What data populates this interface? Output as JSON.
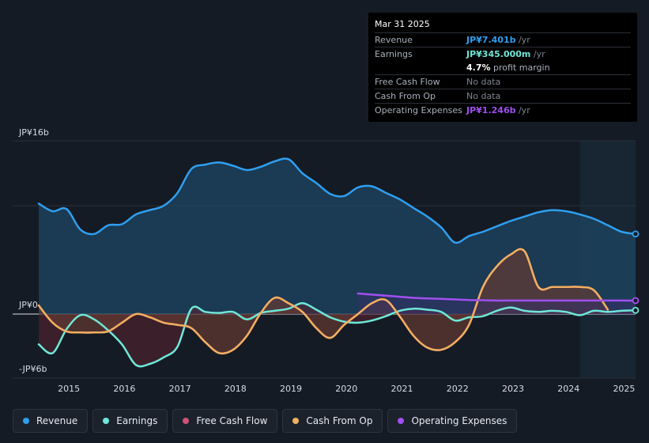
{
  "tooltip": {
    "date": "Mar 31 2025",
    "rows": [
      {
        "label": "Revenue",
        "value": "JP¥7.401b",
        "unit": " /yr",
        "color": "#2f9ff0"
      },
      {
        "label": "Earnings",
        "value": "JP¥345.000m",
        "unit": " /yr",
        "color": "#6ee8d8"
      },
      {
        "label": "Free Cash Flow",
        "value": "No data",
        "unit": "",
        "color": "#7d8590"
      },
      {
        "label": "Cash From Op",
        "value": "No data",
        "unit": "",
        "color": "#7d8590"
      },
      {
        "label": "Operating Expenses",
        "value": "JP¥1.246b",
        "unit": " /yr",
        "color": "#a050f0"
      }
    ],
    "margin_value": "4.7%",
    "margin_label": " profit margin"
  },
  "legend": [
    {
      "label": "Revenue",
      "color": "#2f9ff0"
    },
    {
      "label": "Earnings",
      "color": "#6ee8d8"
    },
    {
      "label": "Free Cash Flow",
      "color": "#d0507a"
    },
    {
      "label": "Cash From Op",
      "color": "#f0b060"
    },
    {
      "label": "Operating Expenses",
      "color": "#a050f0"
    }
  ],
  "chart_data": {
    "type": "line",
    "title": "",
    "ylabel": "",
    "y_tick_labels": [
      "JP¥16b",
      "JP¥0",
      "-JP¥6b"
    ],
    "ylim": [
      -6,
      16
    ],
    "xlim": [
      2014.45,
      2025.25
    ],
    "x_tick_labels": [
      "2015",
      "2016",
      "2017",
      "2018",
      "2019",
      "2020",
      "2021",
      "2022",
      "2023",
      "2024",
      "2025"
    ],
    "forecast_start": 2024.25,
    "series": [
      {
        "name": "Revenue",
        "color": "#2f9ff0",
        "x": [
          2014.5,
          2014.75,
          2015.0,
          2015.25,
          2015.5,
          2015.75,
          2016.0,
          2016.25,
          2016.5,
          2016.75,
          2017.0,
          2017.25,
          2017.5,
          2017.75,
          2018.0,
          2018.25,
          2018.5,
          2018.75,
          2019.0,
          2019.25,
          2019.5,
          2019.75,
          2020.0,
          2020.25,
          2020.5,
          2020.75,
          2021.0,
          2021.25,
          2021.5,
          2021.75,
          2022.0,
          2022.25,
          2022.5,
          2022.75,
          2023.0,
          2023.25,
          2023.5,
          2023.75,
          2024.0,
          2024.25,
          2024.5,
          2024.75,
          2025.0,
          2025.25
        ],
        "y": [
          10.2,
          9.5,
          9.7,
          7.8,
          7.4,
          8.2,
          8.3,
          9.2,
          9.6,
          10.0,
          11.2,
          13.4,
          13.8,
          14.0,
          13.7,
          13.3,
          13.6,
          14.1,
          14.3,
          13.0,
          12.1,
          11.1,
          10.9,
          11.7,
          11.8,
          11.2,
          10.6,
          9.8,
          9.0,
          8.0,
          6.6,
          7.2,
          7.6,
          8.1,
          8.6,
          9.0,
          9.4,
          9.6,
          9.5,
          9.2,
          8.8,
          8.2,
          7.6,
          7.4
        ]
      },
      {
        "name": "Earnings",
        "color": "#6ee8d8",
        "x": [
          2014.5,
          2014.75,
          2015.0,
          2015.25,
          2015.5,
          2015.75,
          2016.0,
          2016.25,
          2016.5,
          2016.75,
          2017.0,
          2017.25,
          2017.5,
          2017.75,
          2018.0,
          2018.25,
          2018.5,
          2018.75,
          2019.0,
          2019.25,
          2019.5,
          2019.75,
          2020.0,
          2020.25,
          2020.5,
          2020.75,
          2021.0,
          2021.25,
          2021.5,
          2021.75,
          2022.0,
          2022.25,
          2022.5,
          2022.75,
          2023.0,
          2023.25,
          2023.5,
          2023.75,
          2024.0,
          2024.25,
          2024.5,
          2024.75,
          2025.0,
          2025.25
        ],
        "y": [
          -2.8,
          -3.6,
          -1.4,
          -0.1,
          -0.5,
          -1.5,
          -2.8,
          -4.7,
          -4.6,
          -4.0,
          -3.0,
          0.5,
          0.2,
          0.1,
          0.2,
          -0.5,
          0.1,
          0.3,
          0.5,
          1.0,
          0.4,
          -0.3,
          -0.7,
          -0.8,
          -0.6,
          -0.2,
          0.3,
          0.5,
          0.4,
          0.2,
          -0.6,
          -0.3,
          -0.2,
          0.3,
          0.6,
          0.3,
          0.2,
          0.3,
          0.2,
          -0.1,
          0.3,
          0.2,
          0.3,
          0.345
        ]
      },
      {
        "name": "Free Cash Flow",
        "color": "#d0507a",
        "x": [
          2014.5,
          2014.75,
          2015.0,
          2015.25,
          2015.5,
          2015.75,
          2016.0,
          2016.25,
          2016.5,
          2016.75,
          2017.0,
          2017.25,
          2017.5,
          2017.75,
          2018.0,
          2018.25,
          2018.5,
          2018.75,
          2019.0,
          2019.25,
          2019.5,
          2019.75,
          2020.0,
          2020.25,
          2020.5,
          2020.75,
          2021.0,
          2021.25,
          2021.5,
          2021.75,
          2022.0,
          2022.25,
          2022.5,
          2022.75,
          2023.0,
          2023.25,
          2023.5,
          2023.75,
          2024.0,
          2024.25,
          2024.5,
          2024.75
        ],
        "y": [
          0.8,
          -0.8,
          -1.6,
          -1.7,
          -1.7,
          -1.6,
          -0.8,
          0.0,
          -0.3,
          -0.8,
          -1.0,
          -1.3,
          -2.6,
          -3.6,
          -3.3,
          -2.0,
          0.1,
          1.5,
          1.0,
          0.2,
          -1.3,
          -2.2,
          -1.0,
          0.0,
          1.0,
          1.3,
          -0.2,
          -2.0,
          -3.1,
          -3.3,
          -2.6,
          -1.0,
          2.5,
          4.4,
          5.5,
          5.8,
          2.5,
          2.5,
          2.5,
          2.5,
          2.2,
          0.4
        ]
      },
      {
        "name": "Cash From Op",
        "color": "#f0b060",
        "x": [
          2014.5,
          2014.75,
          2015.0,
          2015.25,
          2015.5,
          2015.75,
          2016.0,
          2016.25,
          2016.5,
          2016.75,
          2017.0,
          2017.25,
          2017.5,
          2017.75,
          2018.0,
          2018.25,
          2018.5,
          2018.75,
          2019.0,
          2019.25,
          2019.5,
          2019.75,
          2020.0,
          2020.25,
          2020.5,
          2020.75,
          2021.0,
          2021.25,
          2021.5,
          2021.75,
          2022.0,
          2022.25,
          2022.5,
          2022.75,
          2023.0,
          2023.25,
          2023.5,
          2023.75,
          2024.0,
          2024.25,
          2024.5,
          2024.75
        ],
        "y": [
          0.8,
          -0.8,
          -1.6,
          -1.7,
          -1.7,
          -1.6,
          -0.8,
          0.0,
          -0.3,
          -0.8,
          -1.0,
          -1.3,
          -2.6,
          -3.6,
          -3.3,
          -2.0,
          0.1,
          1.5,
          1.0,
          0.2,
          -1.3,
          -2.2,
          -1.0,
          0.0,
          1.0,
          1.3,
          -0.2,
          -2.0,
          -3.1,
          -3.3,
          -2.6,
          -1.0,
          2.5,
          4.4,
          5.5,
          5.8,
          2.5,
          2.5,
          2.5,
          2.5,
          2.2,
          0.4
        ]
      },
      {
        "name": "Operating Expenses",
        "color": "#a050f0",
        "x": [
          2020.25,
          2020.5,
          2020.75,
          2021.0,
          2021.25,
          2021.5,
          2021.75,
          2022.0,
          2022.25,
          2022.5,
          2022.75,
          2023.0,
          2023.25,
          2023.5,
          2023.75,
          2024.0,
          2024.25,
          2024.5,
          2024.75,
          2025.0,
          2025.25
        ],
        "y": [
          1.9,
          1.8,
          1.7,
          1.6,
          1.5,
          1.45,
          1.4,
          1.35,
          1.3,
          1.28,
          1.25,
          1.25,
          1.25,
          1.25,
          1.25,
          1.25,
          1.25,
          1.25,
          1.25,
          1.246,
          1.246
        ]
      }
    ]
  }
}
